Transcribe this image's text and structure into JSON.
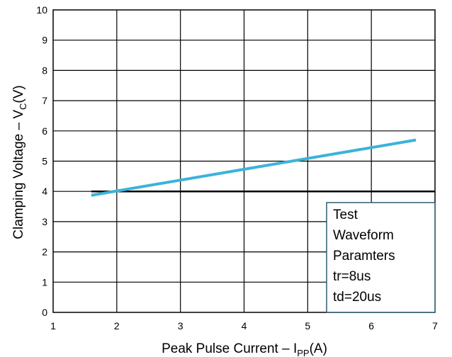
{
  "chart_data": {
    "type": "line",
    "xlabel": "Peak Pulse Current – I",
    "xlabel_sub": "PP",
    "xlabel_unit": "(A)",
    "ylabel": "Clamping Voltage – V",
    "ylabel_sub": "C",
    "ylabel_unit": "(V)",
    "xlim": [
      1,
      7
    ],
    "ylim": [
      0,
      10
    ],
    "x_ticks": [
      1,
      2,
      3,
      4,
      5,
      6,
      7
    ],
    "y_ticks": [
      0,
      1,
      2,
      3,
      4,
      5,
      6,
      7,
      8,
      9,
      10
    ],
    "grid": true,
    "series": [
      {
        "x": [
          1.6,
          6.7
        ],
        "y": [
          3.87,
          5.7
        ],
        "color": "#3bb3d9"
      }
    ],
    "reference_line": {
      "y": 4,
      "x_start": 1.6,
      "x_end": 7,
      "color": "#000000"
    },
    "annotation_box": {
      "lines": [
        "Test",
        "Waveform",
        "Paramters",
        "tr=8us",
        "td=20us"
      ],
      "border_color": "#2e5d74"
    }
  }
}
